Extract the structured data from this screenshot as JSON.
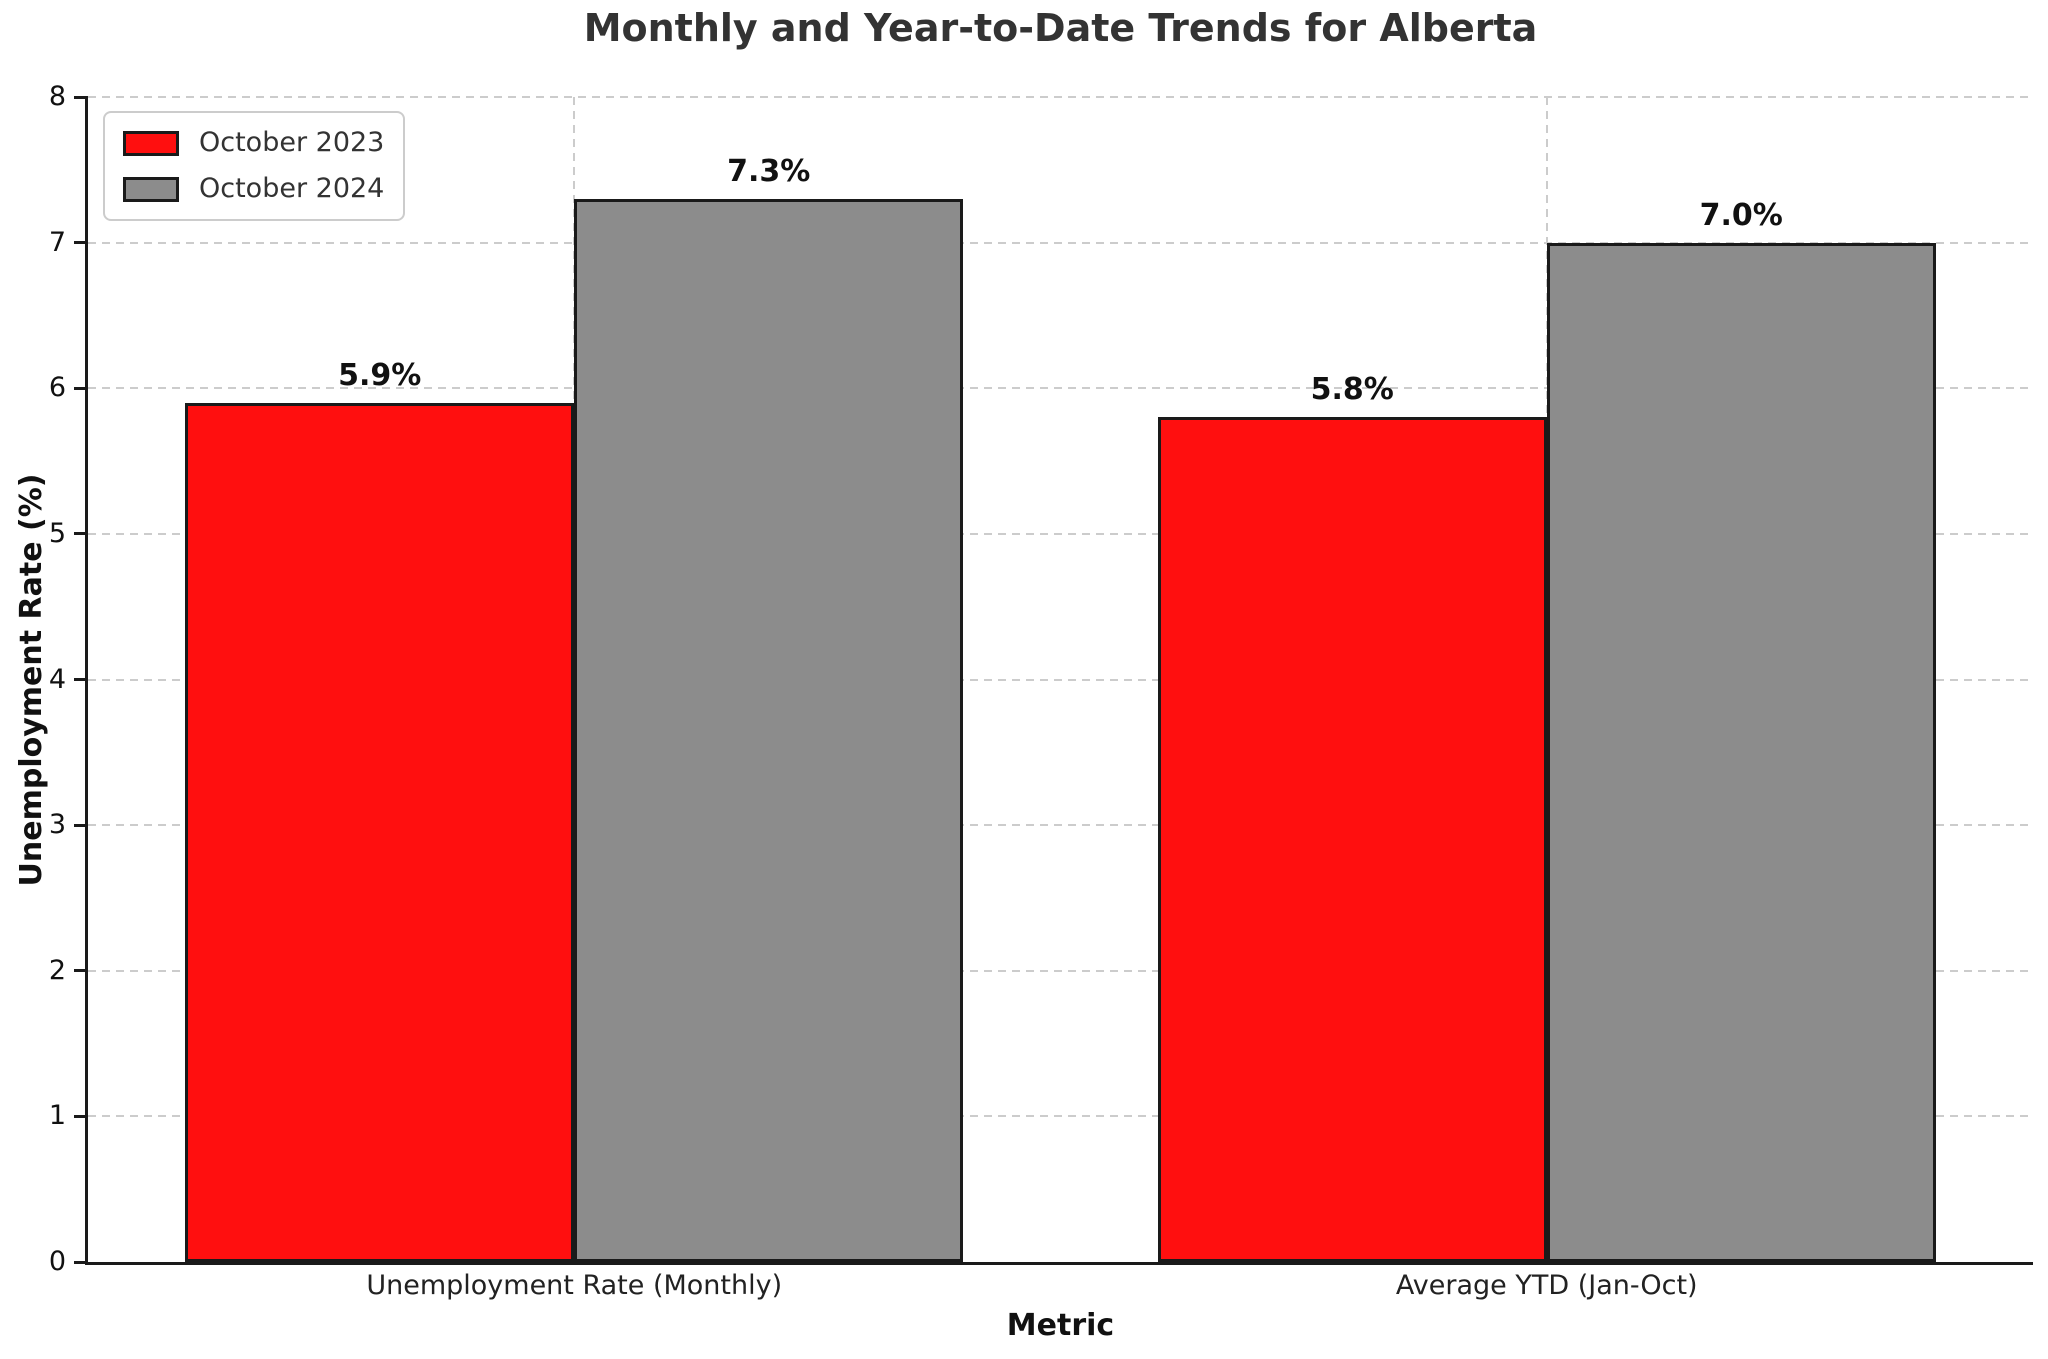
{
  "chart_data": {
    "type": "bar",
    "title": "Monthly and Year-to-Date Trends for Alberta",
    "xlabel": "Metric",
    "ylabel": "Unemployment Rate (%)",
    "categories": [
      "Unemployment Rate (Monthly)",
      "Average YTD (Jan-Oct)"
    ],
    "series": [
      {
        "name": "October 2023",
        "color": "#ff0f0f",
        "values": [
          5.9,
          5.8
        ],
        "labels": [
          "5.9%",
          "5.8%"
        ]
      },
      {
        "name": "October 2024",
        "color": "#8c8c8c",
        "values": [
          7.3,
          7.0
        ],
        "labels": [
          "7.3%",
          "7.0%"
        ]
      }
    ],
    "ylim": [
      0,
      8
    ],
    "yticks": [
      0,
      1,
      2,
      3,
      4,
      5,
      6,
      7,
      8
    ],
    "grid": "dashed",
    "legend_position": "upper left",
    "bar_edge_color": "#1a1a1a",
    "grid_color": "#cccccc"
  }
}
